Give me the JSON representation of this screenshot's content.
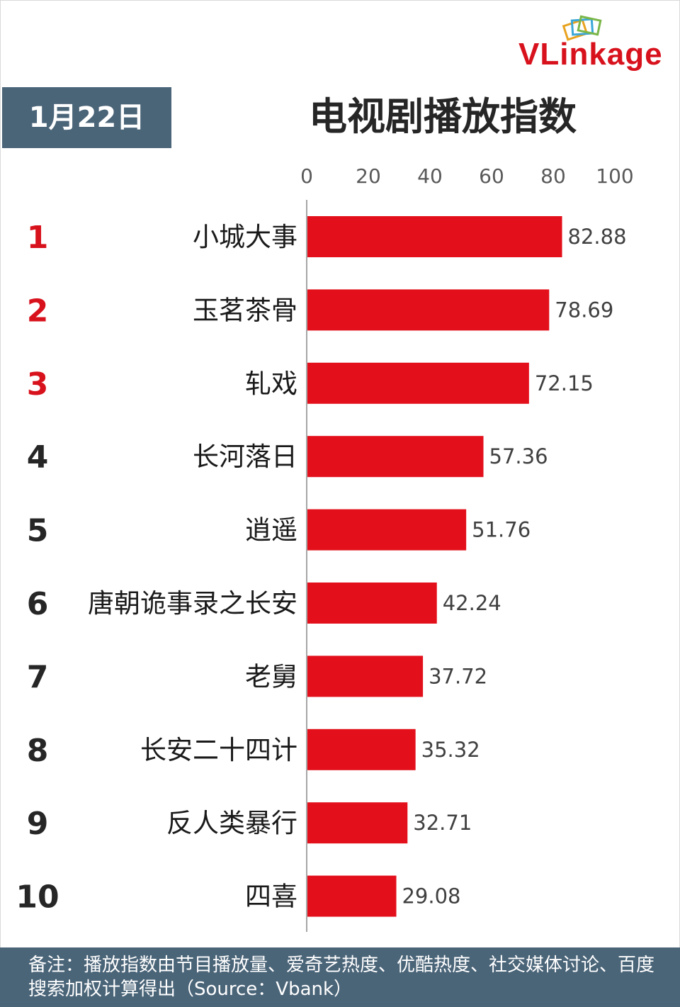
{
  "brand": {
    "logo_text": "VLinkage",
    "accent": "#d8121c",
    "panel_color": "#4a6478"
  },
  "header": {
    "date": "1月22日"
  },
  "chart_data": {
    "type": "bar",
    "orientation": "horizontal",
    "title": "电视剧播放指数",
    "xlabel": "",
    "ylabel": "",
    "xlim": [
      0,
      100
    ],
    "xticks": [
      0,
      20,
      40,
      60,
      80,
      100
    ],
    "xtick_labels": [
      "0",
      "20",
      "40",
      "60",
      "80",
      "100"
    ],
    "grid": false,
    "bar_color": "#e3101b",
    "ranks": [
      "1",
      "2",
      "3",
      "4",
      "5",
      "6",
      "7",
      "8",
      "9",
      "10"
    ],
    "top_rank_color": "#d8121c",
    "other_rank_color": "#262626",
    "categories": [
      "小城大事",
      "玉茗茶骨",
      "轧戏",
      "长河落日",
      "逍遥",
      "唐朝诡事录之长安",
      "老舅",
      "长安二十四计",
      "反人类暴行",
      "四喜"
    ],
    "values": [
      82.88,
      78.69,
      72.15,
      57.36,
      51.76,
      42.24,
      37.72,
      35.32,
      32.71,
      29.08
    ],
    "value_labels": [
      "82.88",
      "78.69",
      "72.15",
      "57.36",
      "51.76",
      "42.24",
      "37.72",
      "35.32",
      "32.71",
      "29.08"
    ]
  },
  "footer": {
    "note": "备注：播放指数由节目播放量、爱奇艺热度、优酷热度、社交媒体讨论、百度搜索加权计算得出（Source：Vbank）"
  }
}
